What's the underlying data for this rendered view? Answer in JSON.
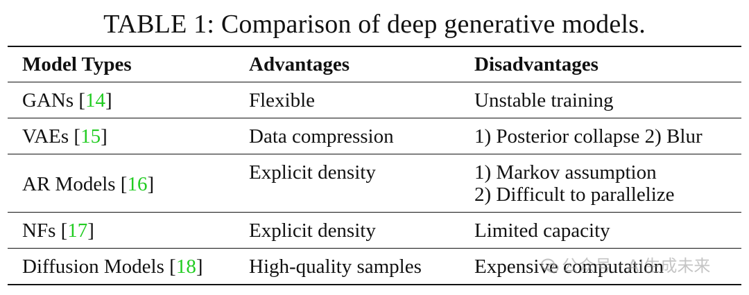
{
  "caption": "TABLE 1: Comparison of deep generative models.",
  "headers": [
    "Model Types",
    "Advantages",
    "Disadvantages"
  ],
  "rows": [
    {
      "model": "GANs",
      "ref": "14",
      "advantages": "Flexible",
      "disadvantages": [
        "Unstable training"
      ]
    },
    {
      "model": "VAEs",
      "ref": "15",
      "advantages": "Data compression",
      "disadvantages": [
        "1) Posterior collapse 2) Blur"
      ]
    },
    {
      "model": "AR Models",
      "ref": "16",
      "advantages": "Explicit density",
      "disadvantages": [
        "1) Markov assumption",
        "2) Difficult to parallelize"
      ]
    },
    {
      "model": "NFs",
      "ref": "17",
      "advantages": "Explicit density",
      "disadvantages": [
        "Limited capacity"
      ]
    },
    {
      "model": "Diffusion Models",
      "ref": "18",
      "advantages": "High-quality samples",
      "disadvantages": [
        "Expensive computation"
      ]
    }
  ],
  "colors": {
    "reference": "#22cc22"
  },
  "watermark": "公众号 · AI生成未来",
  "watermark_icon": "wechat-icon"
}
